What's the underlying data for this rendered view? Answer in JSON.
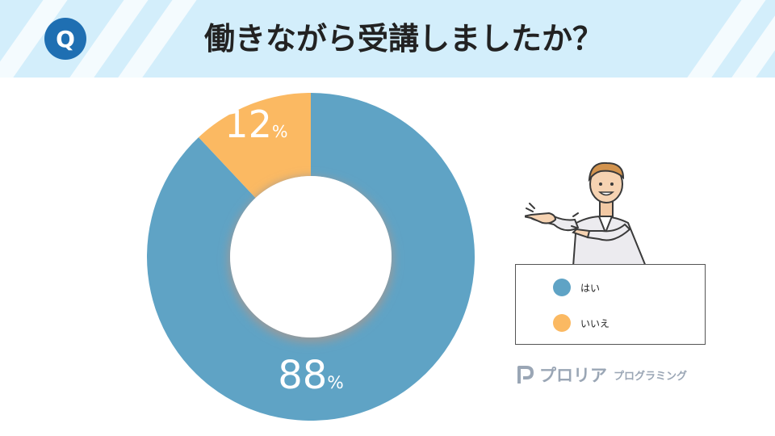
{
  "header": {
    "badge": "Q",
    "title": "働きながら受講しましたか？"
  },
  "chart_data": {
    "type": "pie",
    "variant": "donut",
    "title": "働きながら受講しましたか？",
    "unit": "%",
    "categories": [
      "はい",
      "いいえ"
    ],
    "values": [
      88,
      12
    ],
    "colors": [
      "#5fa3c5",
      "#fbb962"
    ],
    "legend_position": "right"
  },
  "legend": {
    "items": [
      {
        "label": "はい",
        "color": "#5fa3c5"
      },
      {
        "label": "いいえ",
        "color": "#fbb962"
      }
    ]
  },
  "brand": {
    "name": "プロリア",
    "sub": "プログラミング"
  },
  "illustration": {
    "icon": "man-pointing-icon"
  }
}
